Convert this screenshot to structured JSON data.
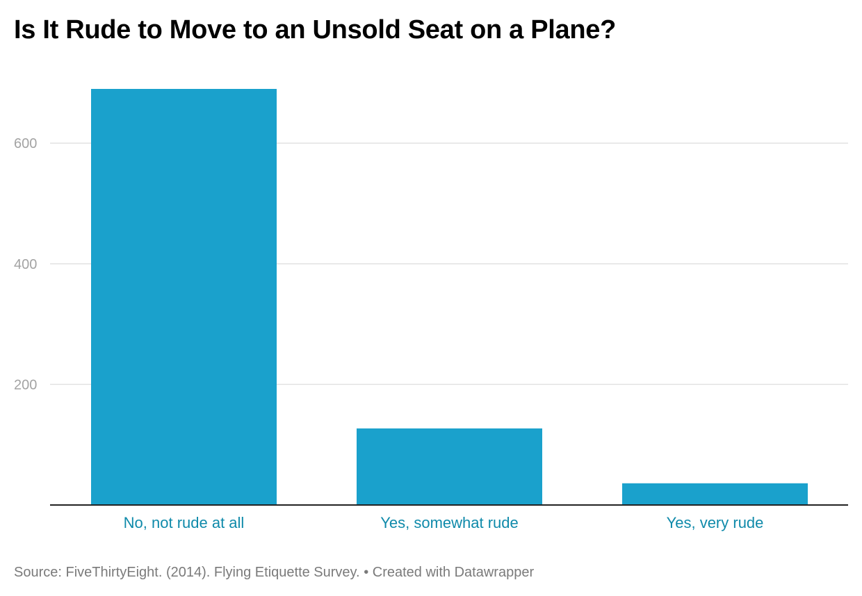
{
  "title": "Is It Rude to Move to an Unsold Seat on a Plane?",
  "footer": {
    "source": "Source: FiveThirtyEight. (2014). Flying Etiquette Survey.",
    "separator": "•",
    "credit": "Created with Datawrapper"
  },
  "colors": {
    "bar": "#1aa1cc",
    "category_label": "#0f8aaa",
    "tick_label": "#a3a3a3",
    "gridline": "#e2e2e2",
    "baseline": "#222222"
  },
  "chart_data": {
    "type": "bar",
    "categories": [
      "No, not rude at all",
      "Yes, somewhat rude",
      "Yes, very rude"
    ],
    "values": [
      690,
      127,
      36
    ],
    "yticks": [
      200,
      400,
      600
    ],
    "ylim": [
      0,
      690
    ],
    "grid": true,
    "title": "Is It Rude to Move to an Unsold Seat on a Plane?",
    "xlabel": "",
    "ylabel": ""
  }
}
